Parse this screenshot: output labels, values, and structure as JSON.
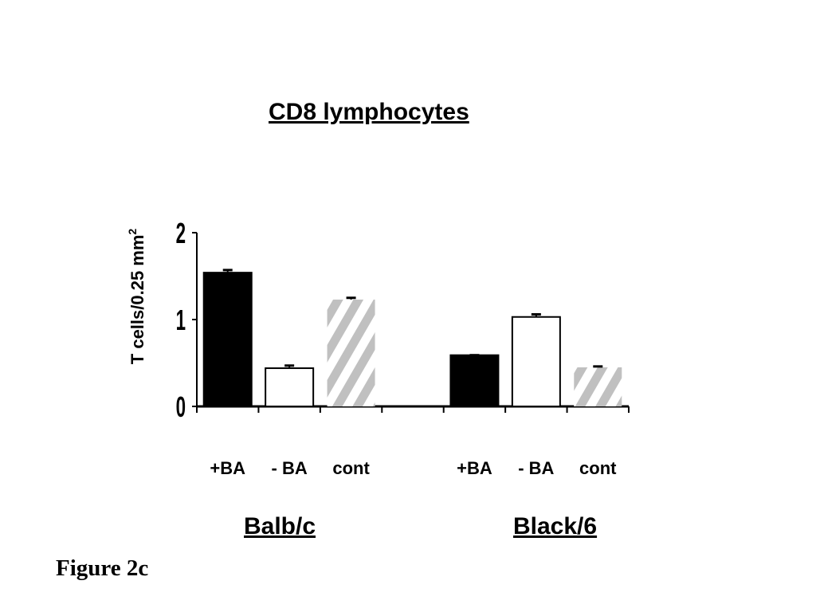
{
  "figure_label": "Figure 2c",
  "chart_data": {
    "type": "bar",
    "title": "CD8 lymphocytes",
    "ylabel": "T cells/0.25 mm",
    "ylabel_superscript": "2",
    "ylim": [
      0,
      2
    ],
    "yticks": [
      "0",
      "1",
      "2"
    ],
    "groups": [
      "Balb/c",
      "Black/6"
    ],
    "categories": [
      "+BA",
      "- BA",
      "cont"
    ],
    "series": [
      {
        "group": "Balb/c",
        "values": [
          1.54,
          0.44,
          1.23
        ],
        "errors": [
          0.03,
          0.03,
          0.02
        ]
      },
      {
        "group": "Black/6",
        "values": [
          0.59,
          1.03,
          0.45
        ],
        "errors": [
          0.0,
          0.03,
          0.01
        ]
      }
    ],
    "colors": {
      "+BA": "#000000",
      "- BA": "#ffffff",
      "cont": "#c0c0c0"
    },
    "grid": false,
    "legend": "none"
  }
}
